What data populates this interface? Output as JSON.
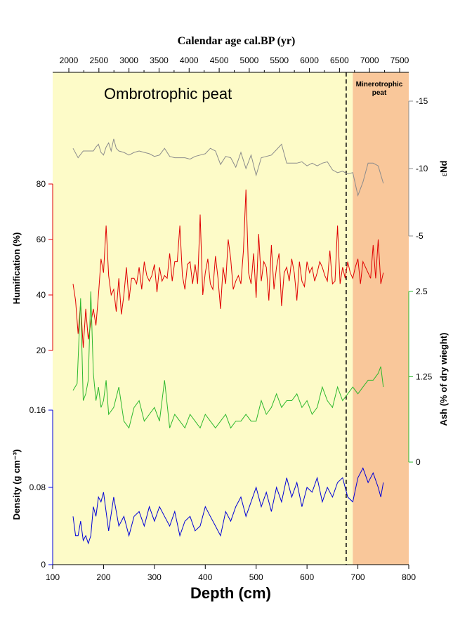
{
  "chart_data": {
    "type": "line",
    "top_axis": {
      "title": "Calendar age cal.BP (yr)",
      "ticks": [
        2000,
        2500,
        3000,
        3500,
        4000,
        4500,
        5000,
        5500,
        6000,
        6500,
        7000,
        7500
      ],
      "tick_labels": [
        "2000",
        "2500",
        "3000",
        "3500",
        "4000",
        "4500",
        "5000",
        "5500",
        "6000",
        "6500",
        "7000",
        "7500"
      ]
    },
    "bottom_axis": {
      "title": "Depth (cm)",
      "xlim": [
        100,
        800
      ],
      "ticks": [
        100,
        200,
        300,
        400,
        500,
        600,
        700,
        800
      ],
      "tick_labels": [
        "100",
        "200",
        "300",
        "400",
        "500",
        "600",
        "700",
        "800"
      ]
    },
    "zones": [
      {
        "label": "Ombrotrophic peat",
        "from": 100,
        "to": 670,
        "color": "#fdfbc8"
      },
      {
        "label_line1": "Minerotrophic",
        "label_line2": "peat",
        "from": 690,
        "to": 800,
        "color": "#f9c79a"
      }
    ],
    "boundary_depth": 677,
    "series": [
      {
        "name": "εNd",
        "axis_label_prefix": "ε",
        "axis_label_main": "Nd",
        "color": "#8c8c8c",
        "ylim": [
          -5,
          -15
        ],
        "ticks": [
          -15,
          -10,
          -5
        ],
        "tick_labels": [
          "-15",
          "-10",
          "-5"
        ],
        "side": "right",
        "x": [
          140,
          150,
          160,
          170,
          180,
          185,
          190,
          195,
          200,
          205,
          210,
          215,
          220,
          225,
          230,
          240,
          250,
          260,
          270,
          280,
          290,
          300,
          310,
          320,
          330,
          340,
          350,
          360,
          370,
          380,
          390,
          400,
          410,
          420,
          430,
          440,
          450,
          460,
          470,
          480,
          490,
          500,
          510,
          520,
          530,
          540,
          550,
          560,
          570,
          580,
          590,
          600,
          610,
          620,
          630,
          640,
          650,
          660,
          670,
          680,
          690,
          700,
          710,
          720,
          730,
          740,
          750
        ],
        "y": [
          -11.5,
          -10.8,
          -11.3,
          -11.3,
          -11.3,
          -11.6,
          -11.8,
          -11.2,
          -11,
          -11.6,
          -11.9,
          -11.3,
          -12.2,
          -11.5,
          -11.3,
          -11.2,
          -11.0,
          -11.2,
          -11.3,
          -11.2,
          -11.1,
          -10.9,
          -11.0,
          -11.5,
          -10.9,
          -10.8,
          -10.8,
          -10.8,
          -10.7,
          -10.9,
          -11.0,
          -11.1,
          -11.5,
          -11.3,
          -10.3,
          -10.9,
          -10.8,
          -10.1,
          -11.2,
          -10.0,
          -11.0,
          -9.5,
          -10.8,
          -10.9,
          -11.0,
          -11.4,
          -11.8,
          -10.4,
          -10.4,
          -10.4,
          -10.5,
          -10.2,
          -10.4,
          -10.2,
          -10.4,
          -10.5,
          -9.9,
          -9.7,
          -9.8,
          -9.6,
          -9.7,
          -8.0,
          -9.0,
          -10.4,
          -10.4,
          -10.2,
          -8.9
        ]
      },
      {
        "name": "Humification (%)",
        "axis_label": "Humification (%)",
        "color": "#e00000",
        "ylim": [
          20,
          80
        ],
        "ticks": [
          20,
          40,
          60,
          80
        ],
        "tick_labels": [
          "20",
          "40",
          "60",
          "80"
        ],
        "side": "left",
        "x": [
          140,
          145,
          150,
          155,
          160,
          165,
          170,
          175,
          180,
          185,
          190,
          195,
          200,
          205,
          210,
          215,
          220,
          225,
          230,
          235,
          240,
          245,
          250,
          255,
          260,
          265,
          270,
          275,
          280,
          285,
          290,
          295,
          300,
          305,
          310,
          315,
          320,
          325,
          330,
          335,
          340,
          345,
          350,
          355,
          360,
          365,
          370,
          375,
          380,
          385,
          390,
          395,
          400,
          405,
          410,
          415,
          420,
          425,
          430,
          435,
          440,
          445,
          450,
          455,
          460,
          465,
          470,
          475,
          480,
          485,
          490,
          495,
          500,
          505,
          510,
          515,
          520,
          525,
          530,
          535,
          540,
          545,
          550,
          555,
          560,
          565,
          570,
          575,
          580,
          585,
          590,
          595,
          600,
          605,
          610,
          615,
          620,
          625,
          630,
          635,
          640,
          645,
          650,
          655,
          660,
          665,
          670,
          675,
          680,
          685,
          690,
          695,
          700,
          705,
          710,
          715,
          720,
          725,
          730,
          735,
          740,
          745,
          750
        ],
        "y": [
          44,
          38,
          26,
          37,
          21,
          35,
          24,
          30,
          35,
          29,
          40,
          53,
          48,
          65,
          47,
          40,
          42,
          34,
          46,
          33,
          40,
          50,
          38,
          46,
          46,
          44,
          50,
          42,
          52,
          47,
          45,
          47,
          51,
          41,
          50,
          45,
          47,
          46,
          55,
          45,
          52,
          52,
          65,
          47,
          42,
          51,
          52,
          44,
          51,
          44,
          69,
          40,
          48,
          53,
          44,
          42,
          54,
          46,
          35,
          50,
          44,
          60,
          53,
          42,
          45,
          47,
          44,
          56,
          78,
          48,
          44,
          55,
          39,
          62,
          45,
          52,
          50,
          38,
          58,
          42,
          50,
          55,
          36,
          48,
          50,
          45,
          53,
          48,
          38,
          52,
          45,
          43,
          52,
          48,
          50,
          45,
          48,
          52,
          50,
          47,
          45,
          56,
          44,
          45,
          65,
          44,
          50,
          46,
          52,
          48,
          46,
          50,
          53,
          44,
          52,
          50,
          48,
          46,
          58,
          46,
          60,
          44,
          48
        ],
        "y_note": "shortened"
      },
      {
        "name": "Ash (% of dry wieght)",
        "axis_label": "Ash (% of dry wieght)",
        "color": "#2db82d",
        "ylim": [
          0,
          2.5
        ],
        "ticks": [
          0,
          1.25,
          2.5
        ],
        "tick_labels": [
          "0",
          "1.25",
          "2.5"
        ],
        "side": "right",
        "x": [
          140,
          148,
          155,
          160,
          165,
          170,
          175,
          180,
          185,
          190,
          195,
          200,
          205,
          210,
          220,
          230,
          240,
          250,
          260,
          270,
          280,
          290,
          300,
          310,
          320,
          330,
          340,
          350,
          360,
          370,
          380,
          390,
          400,
          410,
          420,
          430,
          440,
          450,
          460,
          470,
          480,
          490,
          500,
          510,
          520,
          530,
          540,
          550,
          560,
          570,
          580,
          590,
          600,
          610,
          620,
          630,
          640,
          650,
          660,
          670,
          680,
          690,
          700,
          710,
          720,
          730,
          740,
          745,
          750
        ],
        "y": [
          1.05,
          1.15,
          2.4,
          0.9,
          1.0,
          1.2,
          2.5,
          1.3,
          0.9,
          1.1,
          0.8,
          0.9,
          1.2,
          0.7,
          0.8,
          1.1,
          0.6,
          0.5,
          0.8,
          0.9,
          0.6,
          0.7,
          0.8,
          0.6,
          1.2,
          0.5,
          0.7,
          0.6,
          0.5,
          0.7,
          0.6,
          0.5,
          0.7,
          0.6,
          0.5,
          0.6,
          0.7,
          0.5,
          0.6,
          0.6,
          0.7,
          0.6,
          0.6,
          0.9,
          0.7,
          0.8,
          1.0,
          0.8,
          0.9,
          0.9,
          1.0,
          0.8,
          0.9,
          0.7,
          0.8,
          1.1,
          0.9,
          0.8,
          1.1,
          0.9,
          1.0,
          1.1,
          1.0,
          1.1,
          1.2,
          1.2,
          1.3,
          1.4,
          1.1
        ]
      },
      {
        "name": "Density (g cm⁻³)",
        "axis_label": "Density (g cm⁻³)",
        "color": "#0000d8",
        "ylim": [
          0,
          0.16
        ],
        "ticks": [
          0,
          0.08,
          0.16
        ],
        "tick_labels": [
          "0",
          "0.08",
          "0.16"
        ],
        "side": "left",
        "x": [
          140,
          145,
          150,
          155,
          160,
          165,
          170,
          175,
          180,
          185,
          190,
          195,
          200,
          210,
          220,
          230,
          240,
          250,
          260,
          270,
          280,
          290,
          300,
          310,
          320,
          330,
          340,
          350,
          360,
          370,
          380,
          390,
          400,
          410,
          420,
          430,
          440,
          450,
          460,
          470,
          480,
          490,
          500,
          510,
          520,
          530,
          540,
          550,
          560,
          570,
          580,
          590,
          600,
          610,
          620,
          630,
          640,
          650,
          660,
          670,
          680,
          690,
          700,
          710,
          720,
          730,
          740,
          745,
          750
        ],
        "y": [
          0.05,
          0.03,
          0.03,
          0.045,
          0.025,
          0.03,
          0.022,
          0.03,
          0.06,
          0.05,
          0.07,
          0.065,
          0.075,
          0.035,
          0.07,
          0.04,
          0.05,
          0.03,
          0.05,
          0.055,
          0.04,
          0.06,
          0.045,
          0.06,
          0.05,
          0.04,
          0.055,
          0.03,
          0.045,
          0.05,
          0.035,
          0.04,
          0.06,
          0.05,
          0.04,
          0.03,
          0.055,
          0.045,
          0.06,
          0.07,
          0.05,
          0.065,
          0.08,
          0.06,
          0.075,
          0.055,
          0.08,
          0.065,
          0.09,
          0.07,
          0.085,
          0.06,
          0.08,
          0.075,
          0.09,
          0.065,
          0.08,
          0.07,
          0.085,
          0.09,
          0.07,
          0.065,
          0.09,
          0.1,
          0.085,
          0.095,
          0.08,
          0.07,
          0.085
        ]
      }
    ]
  }
}
